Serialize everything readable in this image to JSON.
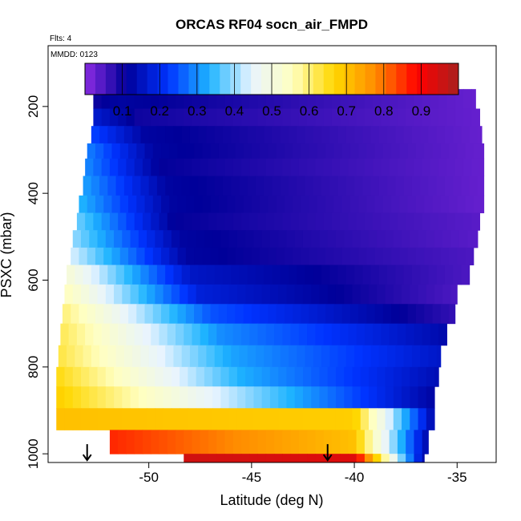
{
  "chart_data": {
    "type": "heatmap",
    "title": "ORCAS RF04 socn_air_FMPD",
    "flights_label": "Flts: 4",
    "date_label": "MMDD: 0123",
    "xlabel": "Latitude (deg N)",
    "ylabel": "PSXC (mbar)",
    "xlim": [
      -54.9,
      -33.1
    ],
    "ylim": [
      1020,
      60
    ],
    "x_ticks": [
      -50,
      -45,
      -40,
      -35
    ],
    "x_tick_labels": [
      "-50",
      "-45",
      "-40",
      "-35"
    ],
    "y_ticks": [
      200,
      400,
      600,
      800,
      1000
    ],
    "y_tick_labels": [
      "200",
      "400",
      "600",
      "800",
      "1000"
    ],
    "colorbar": {
      "range": [
        0,
        1
      ],
      "ticks": [
        0.1,
        0.2,
        0.3,
        0.4,
        0.5,
        0.6,
        0.7,
        0.8,
        0.9
      ],
      "tick_labels": [
        "0.1",
        "0.2",
        "0.3",
        "0.4",
        "0.5",
        "0.6",
        "0.7",
        "0.8",
        "0.9"
      ],
      "stops": [
        "#8B2BE2",
        "#000099",
        "#0033FF",
        "#1EB4FF",
        "#E8F4FF",
        "#FFFFC0",
        "#FFD700",
        "#FF8C00",
        "#FF0000",
        "#A8201E"
      ]
    },
    "bands": [
      {
        "p_top": 160,
        "p_bot": 205,
        "x_min": -52.7,
        "x_max": -34.1,
        "v_left": 0.1,
        "mid_x": -51.5,
        "v_mid": 0.12,
        "v_right": 0.03
      },
      {
        "p_top": 205,
        "p_bot": 245,
        "x_min": -52.7,
        "x_max": -33.9,
        "v_left": 0.17,
        "mid_x": -50.5,
        "v_mid": 0.1,
        "v_right": 0.03
      },
      {
        "p_top": 245,
        "p_bot": 285,
        "x_min": -52.8,
        "x_max": -33.8,
        "v_left": 0.24,
        "mid_x": -50.2,
        "v_mid": 0.12,
        "v_right": 0.03
      },
      {
        "p_top": 285,
        "p_bot": 320,
        "x_min": -53.0,
        "x_max": -33.7,
        "v_left": 0.29,
        "mid_x": -49.8,
        "v_mid": 0.12,
        "v_right": 0.03
      },
      {
        "p_top": 320,
        "p_bot": 360,
        "x_min": -53.1,
        "x_max": -33.7,
        "v_left": 0.3,
        "mid_x": -49.5,
        "v_mid": 0.11,
        "v_right": 0.03
      },
      {
        "p_top": 360,
        "p_bot": 405,
        "x_min": -53.2,
        "x_max": -33.7,
        "v_left": 0.32,
        "mid_x": -49.2,
        "v_mid": 0.12,
        "v_right": 0.03
      },
      {
        "p_top": 405,
        "p_bot": 445,
        "x_min": -53.4,
        "x_max": -33.7,
        "v_left": 0.34,
        "mid_x": -49.0,
        "v_mid": 0.12,
        "v_right": 0.03
      },
      {
        "p_top": 445,
        "p_bot": 485,
        "x_min": -53.5,
        "x_max": -33.9,
        "v_left": 0.38,
        "mid_x": -48.8,
        "v_mid": 0.11,
        "v_right": 0.04
      },
      {
        "p_top": 485,
        "p_bot": 525,
        "x_min": -53.7,
        "x_max": -34.0,
        "v_left": 0.4,
        "mid_x": -48.5,
        "v_mid": 0.12,
        "v_right": 0.04
      },
      {
        "p_top": 525,
        "p_bot": 565,
        "x_min": -53.8,
        "x_max": -34.2,
        "v_left": 0.44,
        "mid_x": -48.2,
        "v_mid": 0.12,
        "v_right": 0.05
      },
      {
        "p_top": 565,
        "p_bot": 610,
        "x_min": -54.0,
        "x_max": -34.4,
        "v_left": 0.52,
        "mid_x": -48.0,
        "v_mid": 0.16,
        "v_right": 0.05
      },
      {
        "p_top": 610,
        "p_bot": 655,
        "x_min": -54.1,
        "x_max": -35.0,
        "v_left": 0.56,
        "mid_x": -47.5,
        "v_mid": 0.18,
        "v_right": 0.05
      },
      {
        "p_top": 655,
        "p_bot": 700,
        "x_min": -54.2,
        "x_max": -35.1,
        "v_left": 0.6,
        "mid_x": -47.0,
        "v_mid": 0.25,
        "v_right": 0.07
      },
      {
        "p_top": 700,
        "p_bot": 750,
        "x_min": -54.3,
        "x_max": -35.5,
        "v_left": 0.62,
        "mid_x": -46.5,
        "v_mid": 0.3,
        "v_right": 0.13
      },
      {
        "p_top": 750,
        "p_bot": 800,
        "x_min": -54.4,
        "x_max": -35.8,
        "v_left": 0.63,
        "mid_x": -46.0,
        "v_mid": 0.32,
        "v_right": 0.16
      },
      {
        "p_top": 800,
        "p_bot": 845,
        "x_min": -54.5,
        "x_max": -35.9,
        "v_left": 0.66,
        "mid_x": -45.5,
        "v_mid": 0.33,
        "v_right": 0.14
      },
      {
        "p_top": 845,
        "p_bot": 895,
        "x_min": -54.5,
        "x_max": -36.1,
        "v_left": 0.68,
        "mid_x": -46.0,
        "v_mid": 0.42,
        "v_right": 0.12
      },
      {
        "p_top": 895,
        "p_bot": 945,
        "x_min": -54.5,
        "x_max": -36.1,
        "v_left": 0.7,
        "mid_x": -40.0,
        "v_mid": 0.68,
        "v_right": 0.12
      },
      {
        "p_top": 945,
        "p_bot": 1000,
        "x_min": -51.9,
        "x_max": -36.4,
        "v_left": 0.86,
        "mid_x": -40.0,
        "v_mid": 0.7,
        "v_right": 0.12
      },
      {
        "p_top": 1000,
        "p_bot": 1050,
        "x_min": -48.3,
        "x_max": -36.6,
        "v_left": 0.95,
        "mid_x": -40.0,
        "v_mid": 0.93,
        "v_right": 0.12
      }
    ],
    "markers": [
      {
        "x": -53.0,
        "p": 1000
      },
      {
        "x": -41.3,
        "p": 1000
      }
    ]
  }
}
